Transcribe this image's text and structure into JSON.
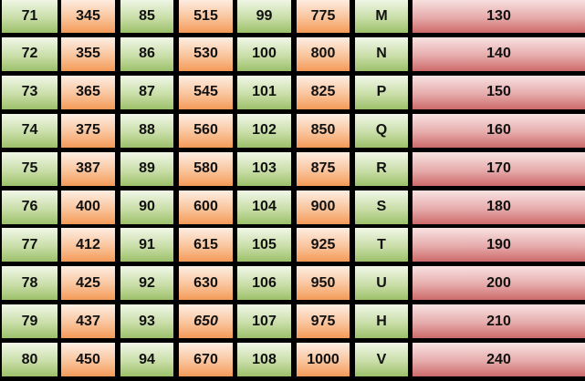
{
  "colors": {
    "green": "#9cc06a",
    "orange": "#f49a58",
    "red": "#cd6a6a",
    "border": "#000000"
  },
  "column_fills": [
    "green",
    "orange",
    "green",
    "orange",
    "green",
    "orange",
    "green",
    "red"
  ],
  "rows": [
    [
      "71",
      "345",
      "85",
      "515",
      "99",
      "775",
      "M",
      "130"
    ],
    [
      "72",
      "355",
      "86",
      "530",
      "100",
      "800",
      "N",
      "140"
    ],
    [
      "73",
      "365",
      "87",
      "545",
      "101",
      "825",
      "P",
      "150"
    ],
    [
      "74",
      "375",
      "88",
      "560",
      "102",
      "850",
      "Q",
      "160"
    ],
    [
      "75",
      "387",
      "89",
      "580",
      "103",
      "875",
      "R",
      "170"
    ],
    [
      "76",
      "400",
      "90",
      "600",
      "104",
      "900",
      "S",
      "180"
    ],
    [
      "77",
      "412",
      "91",
      "615",
      "105",
      "925",
      "T",
      "190"
    ],
    [
      "78",
      "425",
      "92",
      "630",
      "106",
      "950",
      "U",
      "200"
    ],
    [
      "79",
      "437",
      "93",
      "650",
      "107",
      "975",
      "H",
      "210"
    ],
    [
      "80",
      "450",
      "94",
      "670",
      "108",
      "1000",
      "V",
      "240"
    ]
  ],
  "italic_cells": [
    [
      8,
      3
    ]
  ]
}
